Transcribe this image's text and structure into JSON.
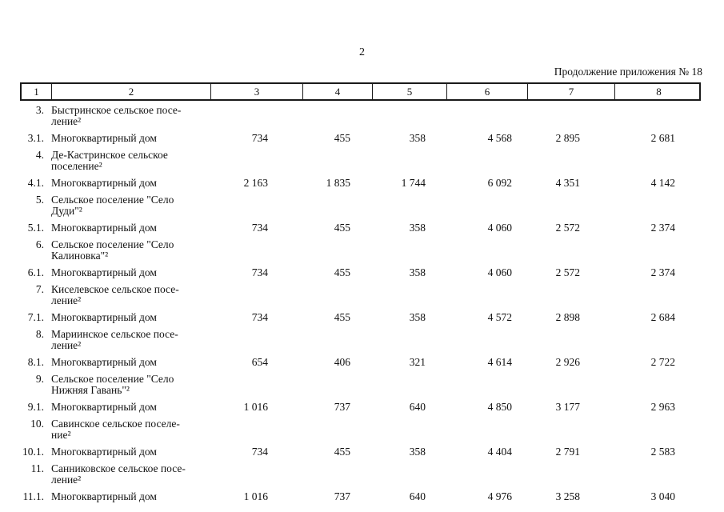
{
  "page_header": {
    "page_number": "2",
    "continuation_label": "Продолжение приложения № 18"
  },
  "colors": {
    "text": "#111111",
    "background": "#ffffff",
    "border": "#1a1a1a"
  },
  "table": {
    "header": [
      "1",
      "2",
      "3",
      "4",
      "5",
      "6",
      "7",
      "8"
    ],
    "rows": [
      {
        "num": "3.",
        "name": "Быстринское сельское посе-\nление²",
        "values": []
      },
      {
        "num": "3.1.",
        "name": "Многоквартирный дом",
        "values": [
          "734",
          "455",
          "358",
          "4 568",
          "2 895",
          "2 681"
        ]
      },
      {
        "num": "4.",
        "name": "Де-Кастринское сельское\nпоселение²",
        "values": []
      },
      {
        "num": "4.1.",
        "name": "Многоквартирный дом",
        "values": [
          "2 163",
          "1 835",
          "1 744",
          "6 092",
          "4 351",
          "4 142"
        ]
      },
      {
        "num": "5.",
        "name": "Сельское поселение \"Село\nДуди\"²",
        "values": []
      },
      {
        "num": "5.1.",
        "name": "Многоквартирный дом",
        "values": [
          "734",
          "455",
          "358",
          "4 060",
          "2 572",
          "2 374"
        ]
      },
      {
        "num": "6.",
        "name": "Сельское поселение \"Село\nКалиновка\"²",
        "values": []
      },
      {
        "num": "6.1.",
        "name": "Многоквартирный дом",
        "values": [
          "734",
          "455",
          "358",
          "4 060",
          "2 572",
          "2 374"
        ]
      },
      {
        "num": "7.",
        "name": "Киселевское сельское посе-\nление²",
        "values": []
      },
      {
        "num": "7.1.",
        "name": "Многоквартирный дом",
        "values": [
          "734",
          "455",
          "358",
          "4 572",
          "2 898",
          "2 684"
        ]
      },
      {
        "num": "8.",
        "name": "Мариинское сельское посе-\nление²",
        "values": []
      },
      {
        "num": "8.1.",
        "name": "Многоквартирный дом",
        "values": [
          "654",
          "406",
          "321",
          "4 614",
          "2 926",
          "2 722"
        ]
      },
      {
        "num": "9.",
        "name": "Сельское поселение \"Село\nНижняя Гавань\"²",
        "values": []
      },
      {
        "num": "9.1.",
        "name": "Многоквартирный дом",
        "values": [
          "1 016",
          "737",
          "640",
          "4 850",
          "3 177",
          "2 963"
        ]
      },
      {
        "num": "10.",
        "name": "Савинское сельское поселе-\nние²",
        "values": []
      },
      {
        "num": "10.1.",
        "name": "Многоквартирный дом",
        "values": [
          "734",
          "455",
          "358",
          "4 404",
          "2 791",
          "2 583"
        ]
      },
      {
        "num": "11.",
        "name": "Санниковское сельское посе-\nление²",
        "values": []
      },
      {
        "num": "11.1.",
        "name": "Многоквартирный дом",
        "values": [
          "1 016",
          "737",
          "640",
          "4 976",
          "3 258",
          "3 040"
        ]
      }
    ]
  }
}
